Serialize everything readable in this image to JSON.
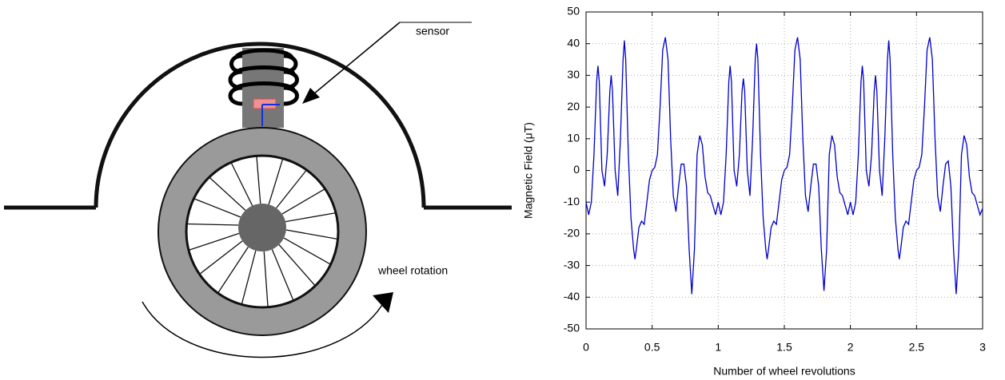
{
  "diagram": {
    "sensor_label": "sensor",
    "rotation_label": "wheel rotation"
  },
  "chart_data": {
    "type": "line",
    "xlabel": "Number of wheel revolutions",
    "ylabel": "Magnetic Field (μT)",
    "xlim": [
      0,
      3
    ],
    "xticks": [
      0,
      0.5,
      1,
      1.5,
      2,
      2.5,
      3
    ],
    "ylim": [
      -50,
      50
    ],
    "yticks": [
      -50,
      -40,
      -30,
      -20,
      -10,
      0,
      10,
      20,
      30,
      40,
      50
    ],
    "grid": true,
    "series": [
      {
        "color": "#0000cc",
        "x": [
          0,
          0.02,
          0.04,
          0.06,
          0.08,
          0.09,
          0.1,
          0.12,
          0.14,
          0.16,
          0.18,
          0.19,
          0.2,
          0.22,
          0.24,
          0.26,
          0.28,
          0.29,
          0.3,
          0.32,
          0.34,
          0.36,
          0.37,
          0.38,
          0.4,
          0.42,
          0.44,
          0.46,
          0.48,
          0.5,
          0.52,
          0.54,
          0.56,
          0.58,
          0.6,
          0.62,
          0.64,
          0.66,
          0.68,
          0.7,
          0.72,
          0.74,
          0.76,
          0.78,
          0.8,
          0.82,
          0.84,
          0.86,
          0.88,
          0.9,
          0.92,
          0.94,
          0.96,
          0.98,
          1,
          1.02,
          1.04,
          1.06,
          1.08,
          1.09,
          1.1,
          1.12,
          1.14,
          1.16,
          1.18,
          1.19,
          1.2,
          1.22,
          1.24,
          1.26,
          1.28,
          1.29,
          1.3,
          1.32,
          1.34,
          1.36,
          1.37,
          1.38,
          1.4,
          1.42,
          1.44,
          1.46,
          1.48,
          1.5,
          1.52,
          1.54,
          1.56,
          1.58,
          1.6,
          1.62,
          1.64,
          1.66,
          1.68,
          1.7,
          1.72,
          1.74,
          1.76,
          1.78,
          1.8,
          1.82,
          1.84,
          1.86,
          1.88,
          1.9,
          1.92,
          1.94,
          1.96,
          1.98,
          2,
          2.02,
          2.04,
          2.06,
          2.08,
          2.09,
          2.1,
          2.12,
          2.14,
          2.16,
          2.18,
          2.19,
          2.2,
          2.22,
          2.24,
          2.26,
          2.28,
          2.29,
          2.3,
          2.32,
          2.34,
          2.36,
          2.37,
          2.38,
          2.4,
          2.42,
          2.44,
          2.46,
          2.48,
          2.5,
          2.52,
          2.54,
          2.56,
          2.58,
          2.6,
          2.62,
          2.64,
          2.66,
          2.68,
          2.7,
          2.72,
          2.74,
          2.76,
          2.78,
          2.8,
          2.82,
          2.84,
          2.86,
          2.88,
          2.9,
          2.92,
          2.94,
          2.96,
          2.98,
          3
        ],
        "values": [
          -10,
          -14,
          -10,
          5,
          28,
          33,
          28,
          0,
          -5,
          5,
          25,
          30,
          25,
          0,
          -8,
          10,
          35,
          41,
          35,
          5,
          -15,
          -25,
          -28,
          -25,
          -18,
          -16,
          -17,
          -10,
          -3,
          0,
          1,
          5,
          20,
          38,
          42,
          35,
          10,
          -8,
          -13,
          -5,
          2,
          2,
          -5,
          -25,
          -39,
          -25,
          5,
          11,
          8,
          -2,
          -7,
          -8,
          -11,
          -14,
          -10,
          -14,
          -10,
          5,
          28,
          33,
          28,
          0,
          -5,
          5,
          25,
          29,
          25,
          0,
          -8,
          10,
          35,
          40,
          35,
          5,
          -15,
          -25,
          -28,
          -25,
          -18,
          -16,
          -17,
          -10,
          -3,
          0,
          1,
          5,
          20,
          38,
          42,
          35,
          10,
          -8,
          -13,
          -5,
          2,
          2,
          -5,
          -25,
          -38,
          -25,
          5,
          11,
          8,
          -2,
          -7,
          -8,
          -11,
          -14,
          -10,
          -14,
          -10,
          5,
          28,
          33,
          28,
          0,
          -5,
          5,
          25,
          30,
          25,
          0,
          -8,
          10,
          35,
          41,
          35,
          5,
          -15,
          -25,
          -28,
          -25,
          -18,
          -16,
          -17,
          -10,
          -3,
          0,
          1,
          5,
          20,
          38,
          42,
          35,
          10,
          -8,
          -13,
          -5,
          2,
          3,
          -5,
          -25,
          -39,
          -25,
          5,
          11,
          8,
          -2,
          -7,
          -8,
          -11,
          -14,
          -12
        ]
      }
    ]
  }
}
